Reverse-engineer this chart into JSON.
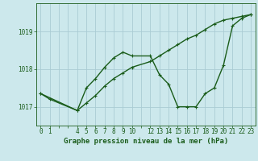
{
  "background_color": "#cce8ec",
  "grid_color": "#aaccd4",
  "line_color": "#1a5c1a",
  "line1_x": [
    0,
    1,
    4,
    5,
    6,
    7,
    8,
    9,
    10,
    12,
    13,
    14,
    15,
    16,
    17,
    18,
    19,
    20,
    21,
    22,
    23
  ],
  "line1_y": [
    1017.35,
    1017.2,
    1016.9,
    1017.5,
    1017.75,
    1018.05,
    1018.3,
    1018.45,
    1018.35,
    1018.35,
    1017.85,
    1017.6,
    1017.0,
    1017.0,
    1017.0,
    1017.35,
    1017.5,
    1018.1,
    1019.15,
    1019.35,
    1019.45
  ],
  "line2_x": [
    0,
    4,
    5,
    6,
    7,
    8,
    9,
    10,
    12,
    13,
    14,
    15,
    16,
    17,
    18,
    19,
    20,
    21,
    22,
    23
  ],
  "line2_y": [
    1017.35,
    1016.9,
    1017.1,
    1017.3,
    1017.55,
    1017.75,
    1017.9,
    1018.05,
    1018.2,
    1018.35,
    1018.5,
    1018.65,
    1018.8,
    1018.9,
    1019.05,
    1019.2,
    1019.3,
    1019.35,
    1019.4,
    1019.45
  ],
  "yticks": [
    1017,
    1018,
    1019
  ],
  "xtick_labels": [
    "0",
    "1",
    "",
    "",
    "4",
    "5",
    "6",
    "7",
    "8",
    "9",
    "10",
    "",
    "12",
    "13",
    "14",
    "15",
    "16",
    "17",
    "18",
    "19",
    "20",
    "21",
    "22",
    "23"
  ],
  "xtick_positions": [
    0,
    1,
    2,
    3,
    4,
    5,
    6,
    7,
    8,
    9,
    10,
    11,
    12,
    13,
    14,
    15,
    16,
    17,
    18,
    19,
    20,
    21,
    22,
    23
  ],
  "xlabel": "Graphe pression niveau de la mer (hPa)",
  "ylim": [
    1016.5,
    1019.75
  ],
  "xlim": [
    -0.5,
    23.5
  ],
  "markersize": 2.5,
  "linewidth": 1.0,
  "tick_fontsize": 5.5,
  "label_fontsize": 6.5
}
